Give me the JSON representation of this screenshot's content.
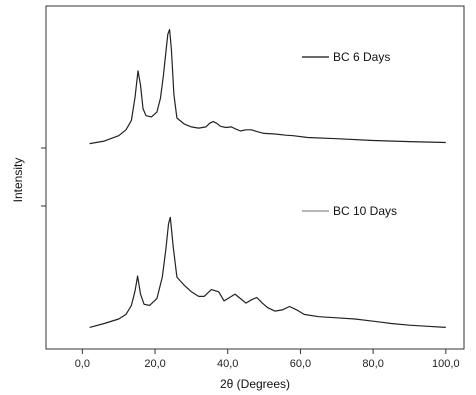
{
  "chart_data": {
    "type": "line",
    "xlabel": "2θ (Degrees)",
    "ylabel": "Intensity",
    "xlim": [
      -10,
      105
    ],
    "xticks": [
      "0,0",
      "20,0",
      "40,0",
      "60,0",
      "80,0",
      "100,0"
    ],
    "xtick_values": [
      0,
      20,
      40,
      60,
      80,
      100
    ],
    "y_tick_labels_shown": false,
    "grid": false,
    "legend": "inline",
    "series": [
      {
        "name": "BC 6 Days",
        "color": "#111111",
        "x": [
          2,
          6,
          10,
          12,
          13.5,
          14.5,
          15.3,
          16,
          16.7,
          17.5,
          19,
          20.5,
          21.5,
          22.3,
          23,
          23.5,
          24,
          24.5,
          25.2,
          26,
          28,
          30,
          32,
          34,
          35,
          36,
          37,
          38,
          39.5,
          41,
          42,
          43.5,
          45,
          46.5,
          48,
          50,
          53,
          56,
          58,
          62,
          70,
          80,
          90,
          100
        ],
        "y": [
          0.3,
          2.5,
          7,
          12,
          20,
          40,
          62,
          50,
          30,
          24,
          23,
          27,
          39,
          58,
          78,
          93,
          97,
          80,
          42,
          22,
          17,
          14.5,
          13.5,
          14.5,
          17.5,
          19,
          17.5,
          15,
          14,
          14.5,
          13,
          11,
          12,
          12,
          10.5,
          9,
          8.5,
          7.5,
          7,
          5.5,
          4.5,
          3,
          2,
          1.3
        ]
      },
      {
        "name": "BC 10 Days",
        "color": "#8c8c8c",
        "x": [
          2,
          6,
          10,
          12,
          13.5,
          14.5,
          15.2,
          16,
          17,
          18.5,
          20.5,
          22,
          23,
          23.7,
          24.2,
          25,
          26,
          28,
          30,
          32,
          33.5,
          35.5,
          37.5,
          39,
          40.5,
          42,
          43.5,
          45,
          46.5,
          48,
          49.5,
          51,
          53,
          55,
          57,
          59,
          61,
          65,
          70,
          75,
          80,
          85,
          90,
          95,
          100
        ],
        "y": [
          0.5,
          4,
          8,
          12,
          20,
          33,
          46,
          30,
          21,
          20,
          26,
          45,
          70,
          92,
          98,
          72,
          45,
          38,
          32,
          28,
          28,
          34,
          32,
          24,
          27,
          30,
          26,
          22,
          25,
          27,
          22,
          18,
          15,
          16,
          19,
          16,
          12,
          10,
          9,
          8,
          6,
          4,
          2.5,
          1.5,
          0.5
        ]
      }
    ]
  }
}
